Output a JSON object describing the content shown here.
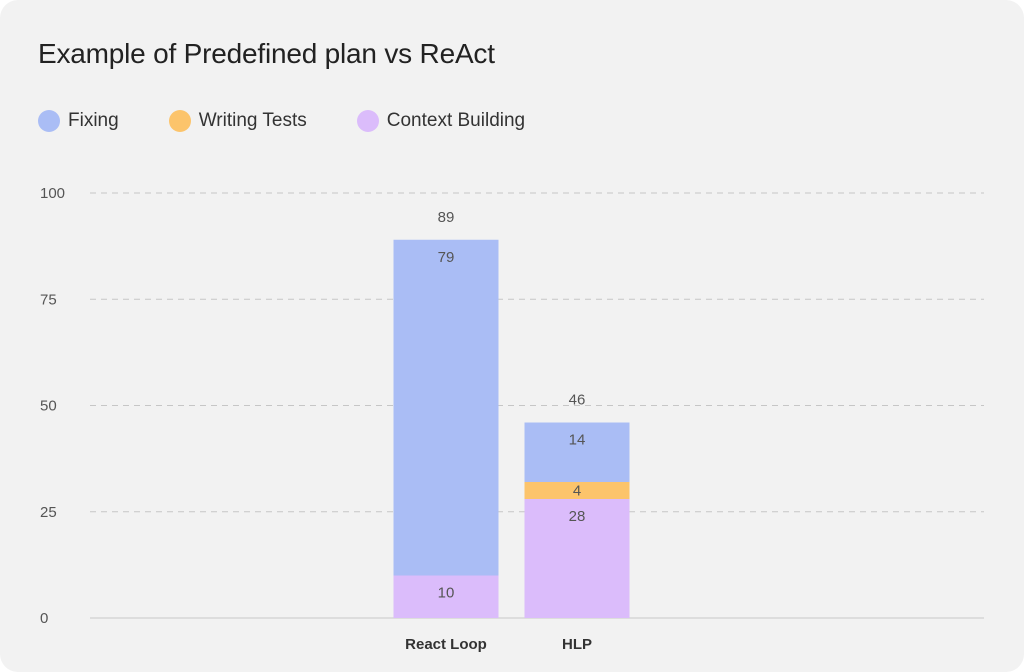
{
  "chart_data": {
    "type": "bar",
    "stacked": true,
    "title": "Example of Predefined plan vs ReAct",
    "categories": [
      "React Loop",
      "HLP"
    ],
    "series": [
      {
        "name": "Fixing",
        "values": [
          79,
          14
        ],
        "color": "#aabdf5"
      },
      {
        "name": "Writing Tests",
        "values": [
          0,
          4
        ],
        "color": "#fcc46b"
      },
      {
        "name": "Context Building",
        "values": [
          10,
          28
        ],
        "color": "#dbbcfb"
      }
    ],
    "totals": [
      89,
      46
    ],
    "ylim": [
      0,
      100
    ],
    "yticks": [
      0,
      25,
      50,
      75,
      100
    ],
    "grid": true,
    "legend_position": "top-left",
    "xlabel": "",
    "ylabel": ""
  }
}
